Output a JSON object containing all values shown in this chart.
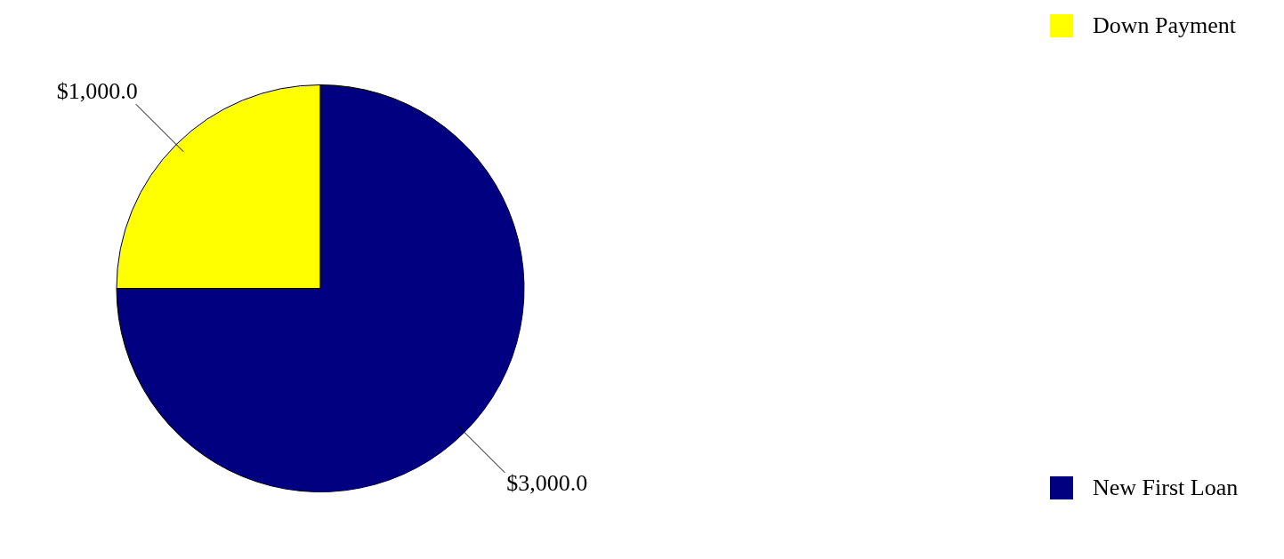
{
  "chart_data": {
    "type": "pie",
    "categories": [
      "Down Payment",
      "New First Loan"
    ],
    "values": [
      1000,
      3000
    ],
    "colors": [
      "#ffff00",
      "#000080"
    ],
    "value_labels": [
      "$1,000.0",
      "$3,000.0"
    ],
    "legend": "right"
  }
}
